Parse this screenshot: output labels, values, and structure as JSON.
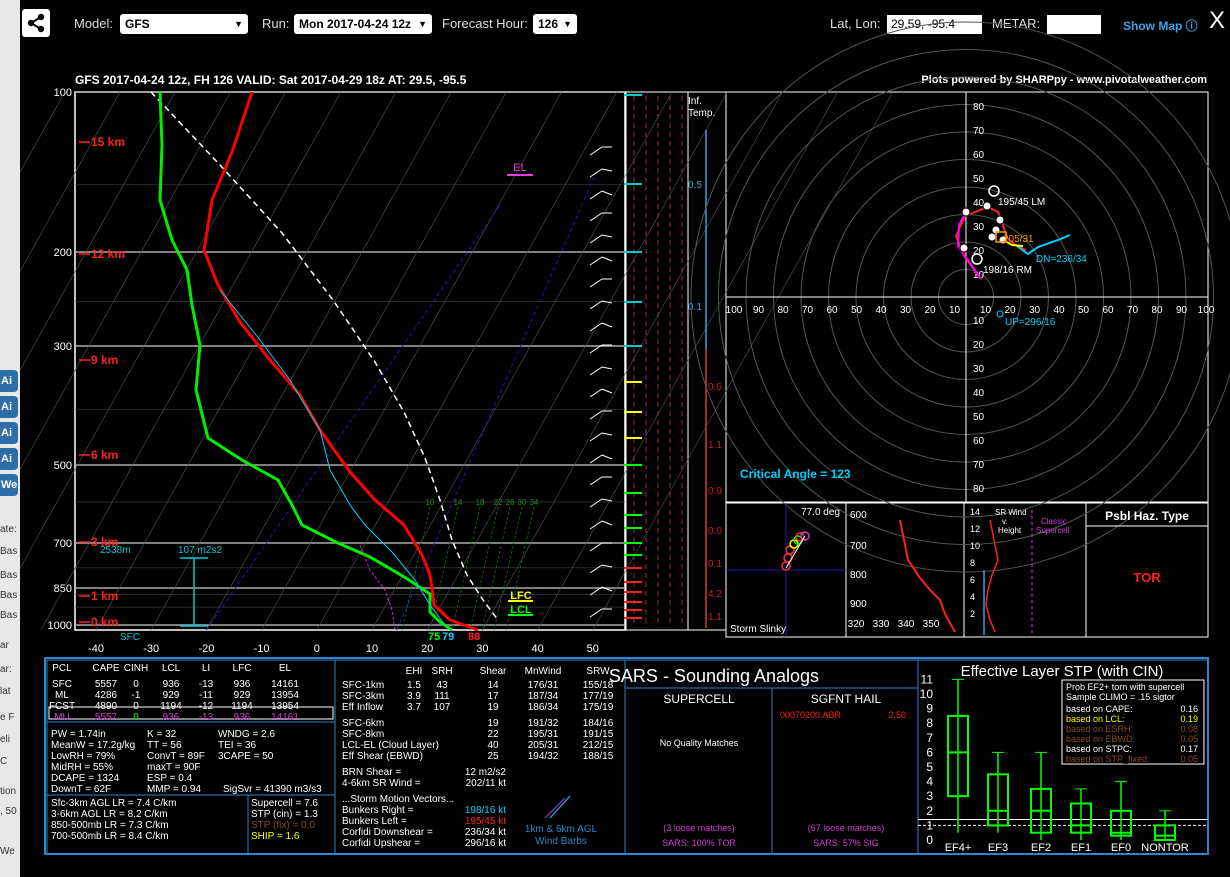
{
  "background": {
    "tabs": [
      "Ai",
      "Ai",
      "Ai",
      "Ai",
      "We"
    ],
    "texts": [
      "ate:",
      "Bas",
      "Bas",
      "Bas",
      "Bas",
      "ar",
      "ar:",
      "lat",
      "e F",
      "eli",
      "C",
      "tion",
      ", 50",
      "We"
    ]
  },
  "toolbar": {
    "model_label": "Model:",
    "model_value": "GFS",
    "run_label": "Run:",
    "run_value": "Mon 2017-04-24 12z",
    "hour_label": "Forecast Hour:",
    "hour_value": "126",
    "latlon_label": "Lat, Lon:",
    "latlon_value": "29.59, -95.4",
    "metar_label": "METAR:",
    "metar_value": "",
    "show_map": "Show Map ⓘ",
    "close": "X"
  },
  "header": {
    "title": "GFS 2017-04-24 12z, FH 126   VALID: Sat 2017-04-29 18z   AT: 29.5, -95.5",
    "credit": "Plots powered by SHARPpy - www.pivotalweather.com"
  },
  "skewt": {
    "pressure_labels": [
      "100",
      "200",
      "300",
      "500",
      "700",
      "850",
      "1000"
    ],
    "height_labels": [
      "15 km",
      "12 km",
      "9 km",
      "6 km",
      "3 km",
      "1 km",
      "0 km"
    ],
    "temp_labels": [
      "-40",
      "-30",
      "-20",
      "-10",
      "0",
      "10",
      "20",
      "30",
      "40",
      "50"
    ],
    "mixing_ratio_labels": [
      "10",
      "14",
      "18",
      "22",
      "26",
      "30",
      "34"
    ],
    "el_label": "EL",
    "lfc_label": "LFC",
    "lcl_label": "LCL",
    "sfc_label": "SFC",
    "dewpoint_surface": "75",
    "wetbulb_surface": "79",
    "temp_surface": "88",
    "eff_inflow_depth": "2538m",
    "eff_inflow_srh": "107 m2s2",
    "colors": {
      "temperature": "#ff0000",
      "dewpoint": "#00ff00",
      "parcel": "#ffffff",
      "wetbulb": "#00ffff",
      "isotherm": "#0000ff"
    }
  },
  "inferred_temp": {
    "title_line1": "Inf.",
    "title_line2": "Temp.",
    "labels_cyan": [
      "0.5",
      "0.1"
    ],
    "labels_red": [
      "0.6",
      "1.1",
      "0.9",
      "0.0",
      "0.1",
      "4.2",
      "1.1"
    ]
  },
  "hodograph": {
    "x_labels": [
      "100",
      "90",
      "80",
      "70",
      "60",
      "50",
      "40",
      "30",
      "20",
      "10",
      "10",
      "20",
      "30",
      "40",
      "50",
      "60",
      "70",
      "80",
      "90",
      "100"
    ],
    "y_labels_top": [
      "80",
      "70",
      "60",
      "50",
      "40",
      "30",
      "20",
      "10"
    ],
    "y_labels_bottom": [
      "10",
      "20",
      "30",
      "40",
      "50",
      "60",
      "70",
      "80"
    ],
    "lm_label": "195/45 LM",
    "rm_label": "198/16 RM",
    "mean_label": "205/31",
    "dn_label": "DN=236/34",
    "up_label": "UP=296/16",
    "critical_angle": "Critical Angle = 123"
  },
  "slinky": {
    "label": "Storm Slinky",
    "angle": "77.0 deg"
  },
  "theta_e": {
    "p_labels": [
      "600",
      "700",
      "800",
      "900"
    ],
    "t_labels": [
      "320",
      "330",
      "340",
      "350"
    ]
  },
  "srwind": {
    "title_line1": "SR Wind",
    "title_line2": "v.",
    "title_line3": "Height",
    "classic_line1": "Classic",
    "classic_line2": "Supercell",
    "h_labels": [
      "14",
      "12",
      "10",
      "8",
      "6",
      "4",
      "2"
    ]
  },
  "hazard": {
    "title": "Psbl Haz. Type",
    "value": "TOR"
  },
  "parcels": {
    "headers": [
      "PCL",
      "CAPE",
      "CINH",
      "LCL",
      "LI",
      "LFC",
      "EL"
    ],
    "rows": [
      [
        "SFC",
        "5557",
        "0",
        "936",
        "-13",
        "936",
        "14161"
      ],
      [
        "ML",
        "4286",
        "-1",
        "929",
        "-11",
        "929",
        "13954"
      ],
      [
        "FCST",
        "4890",
        "0",
        "1194",
        "-12",
        "1194",
        "13954"
      ],
      [
        "MU",
        "5557",
        "0",
        "936",
        "-13",
        "936",
        "14161"
      ]
    ]
  },
  "indices": {
    "col1": [
      "PW = 1.74in",
      "MeanW = 17.2g/kg",
      "LowRH = 79%",
      "MidRH = 55%",
      "DCAPE = 1324",
      "DownT = 62F"
    ],
    "col2": [
      "K = 32",
      "TT = 56",
      "ConvT = 89F",
      "maxT = 90F",
      "ESP = 0.4",
      "MMP = 0.94"
    ],
    "col3": [
      "WNDG = 2.6",
      "TEI = 36",
      "3CAPE = 50",
      "",
      "",
      "SigSvr = 41390 m3/s3"
    ],
    "lapse_rates": [
      "Sfc-3km AGL LR = 7.4 C/km",
      "3-6km AGL LR = 8.2 C/km",
      "850-500mb LR = 7.3 C/km",
      "700-500mb LR = 8.4 C/km"
    ],
    "composite": [
      "Supercell = 7.6",
      "STP (cin) = 1.3",
      "STP (fix) = 0.0",
      "SHIP = 1.6"
    ]
  },
  "kinematics": {
    "headers": [
      "EHI",
      "SRH",
      "Shear",
      "MnWind",
      "SRW"
    ],
    "rows_a": [
      [
        "SFC-1km",
        "1.5",
        "43",
        "14",
        "176/31",
        "155/18"
      ],
      [
        "SFC-3km",
        "3.9",
        "111",
        "17",
        "187/34",
        "177/19"
      ],
      [
        "Eff Inflow",
        "3.7",
        "107",
        "19",
        "186/34",
        "175/19"
      ]
    ],
    "rows_b": [
      [
        "SFC-6km",
        "19",
        "191/32",
        "184/16"
      ],
      [
        "SFC-8km",
        "22",
        "195/31",
        "191/15"
      ],
      [
        "LCL-EL (Cloud Layer)",
        "40",
        "205/31",
        "212/15"
      ],
      [
        "Eff Shear (EBWD)",
        "25",
        "194/32",
        "188/15"
      ]
    ],
    "brn_label": "BRN Shear =",
    "brn_value": "12 m2/s2",
    "srw46_label": "4-6km SR Wind =",
    "srw46_value": "202/11 kt",
    "storm_title": "...Storm Motion Vectors...",
    "storm_rows": [
      [
        "Bunkers Right =",
        "198/16 kt"
      ],
      [
        "Bunkers Left =",
        "195/45 kt"
      ],
      [
        "Corfidi Downshear =",
        "236/34 kt"
      ],
      [
        "Corfidi Upshear =",
        "296/16 kt"
      ]
    ],
    "barb_label1": "1km & 6km AGL",
    "barb_label2": "Wind Barbs"
  },
  "sars": {
    "title": "SARS - Sounding Analogs",
    "supercell_title": "SUPERCELL",
    "sgfnt_title": "SGFNT HAIL",
    "supercell_match": "No Quality Matches",
    "hail_code": "00070200.ABR",
    "hail_value": "2.50",
    "supercell_loose": "(3 loose matches)",
    "supercell_pct": "SARS: 100% TOR",
    "hail_loose": "(67 loose matches)",
    "hail_pct": "SARS: 57% SIG"
  },
  "stp": {
    "title": "Effective Layer STP (with CIN)",
    "legend_title1": "Prob EF2+ torn with supercell",
    "legend_title2": "Sample CLIMO = .15 sigtor",
    "legend_rows": [
      [
        "based on CAPE:",
        "0.16"
      ],
      [
        "based on LCL:",
        "0.19"
      ],
      [
        "based on ESRH:",
        "0.08"
      ],
      [
        "based on EBWD:",
        "0.05"
      ],
      [
        "based on STPC:",
        "0.17"
      ],
      [
        "based on STP_fixed:",
        "0.05"
      ]
    ],
    "y_labels": [
      "11",
      "10",
      "9",
      "8",
      "7",
      "6",
      "5",
      "4",
      "3",
      "2",
      "1",
      "0"
    ],
    "categories": [
      "EF4+",
      "EF3",
      "EF2",
      "EF1",
      "EF0",
      "NONTOR"
    ]
  }
}
